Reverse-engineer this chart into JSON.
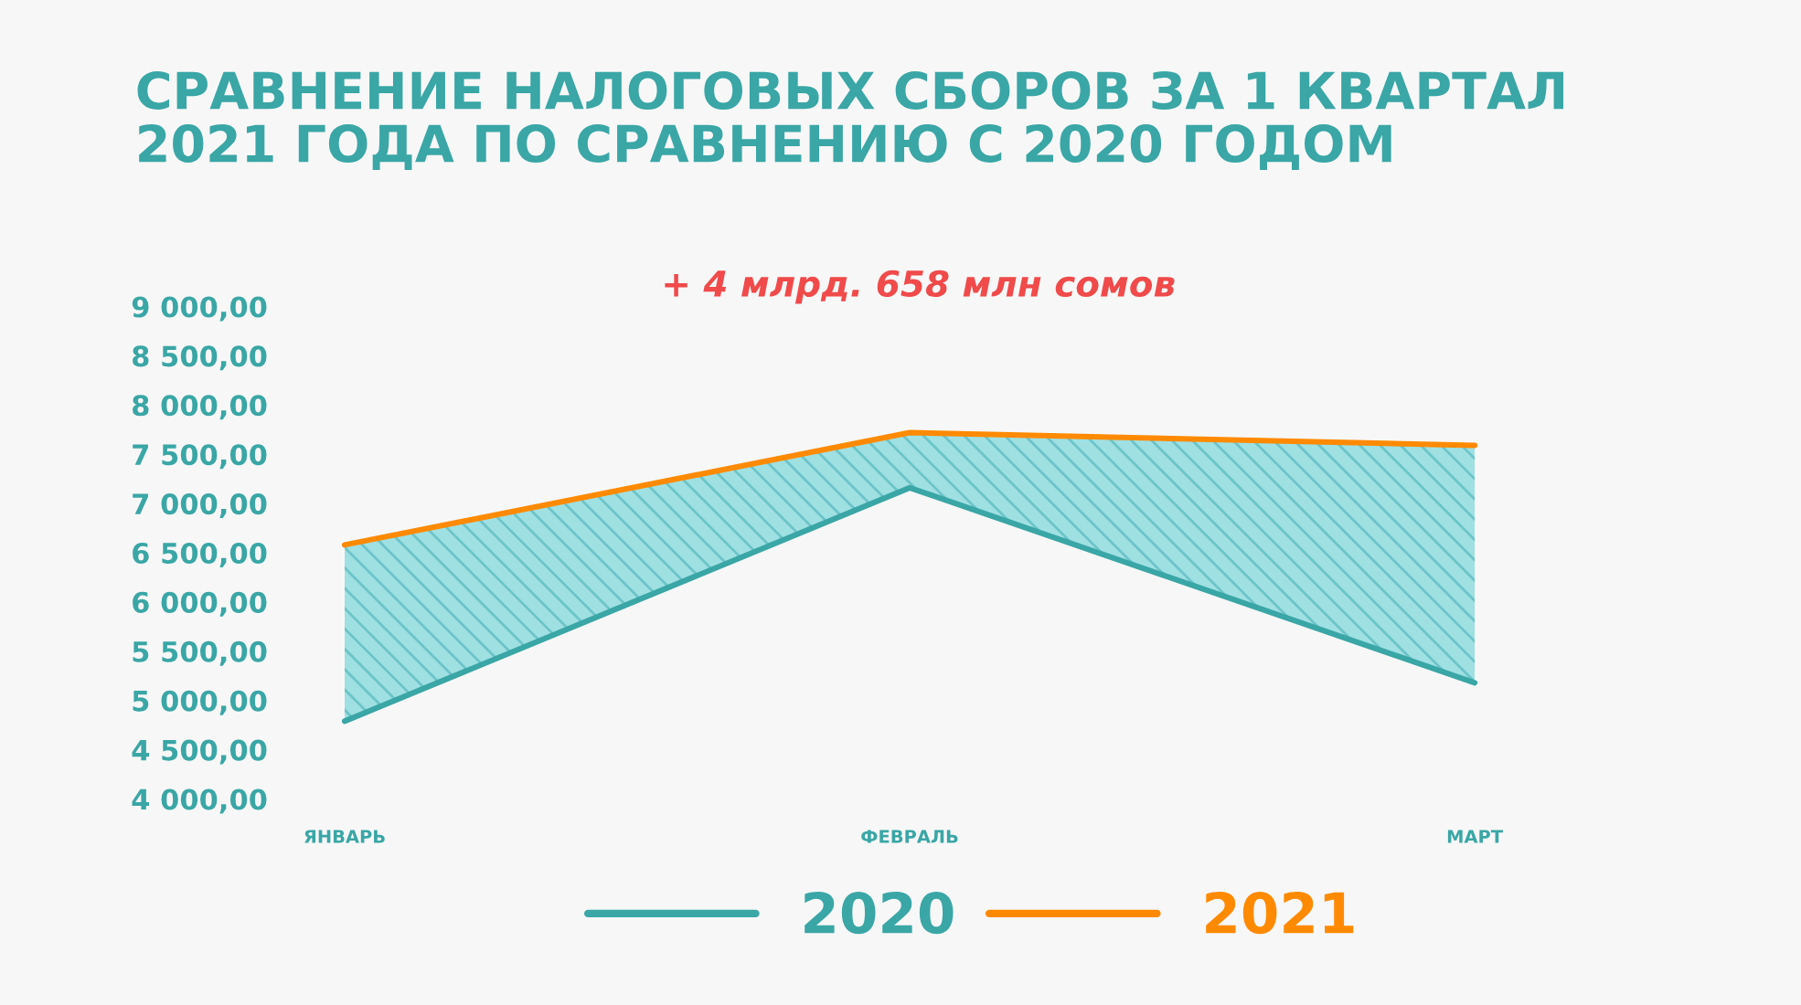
{
  "chart_data": {
    "type": "line",
    "title": "СРАВНЕНИЕ НАЛОГОВЫХ СБОРОВ ЗА 1 КВАРТАЛ\n2021 ГОДА ПО СРАВНЕНИЮ С 2020 ГОДОМ",
    "annotations": [
      "+ 4 млрд. 658 млн сомов"
    ],
    "categories": [
      "ЯНВАРЬ",
      "ФЕВРАЛЬ",
      "МАРТ"
    ],
    "series": [
      {
        "name": "2020",
        "color": "#3aa6a6",
        "values": [
          4790,
          7160,
          5180
        ],
        "lower": [
          4790,
          7160,
          5180
        ],
        "upper": [
          6580,
          7720,
          7590
        ]
      },
      {
        "name": "2021",
        "color": "#ff8a00",
        "values": [
          6580,
          7720,
          7590
        ]
      }
    ],
    "ylim": [
      4000,
      9000
    ],
    "yticks": [
      {
        "value": 4000,
        "label": "4 000,00"
      },
      {
        "value": 4500,
        "label": "4 500,00"
      },
      {
        "value": 5000,
        "label": "5 000,00"
      },
      {
        "value": 5500,
        "label": "5 500,00"
      },
      {
        "value": 6000,
        "label": "6 000,00"
      },
      {
        "value": 6500,
        "label": "6 500,00"
      },
      {
        "value": 7000,
        "label": "7 000,00"
      },
      {
        "value": 7500,
        "label": "7 500,00"
      },
      {
        "value": 8000,
        "label": "8 000,00"
      },
      {
        "value": 8500,
        "label": "8 500,00"
      },
      {
        "value": 9000,
        "label": "9 000,00"
      }
    ],
    "legend": "bottom",
    "grid": false,
    "marker": "none",
    "line_style": "solid"
  }
}
